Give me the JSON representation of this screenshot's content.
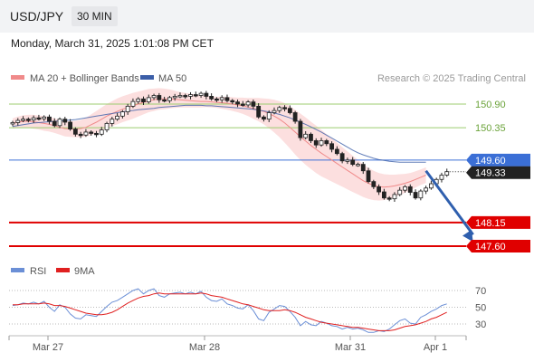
{
  "header": {
    "symbol": "USD/JPY",
    "timeframe": "30 MIN",
    "datetime": "Monday, March 31, 2025 1:01:08 PM CET"
  },
  "legend": {
    "bb_label": "MA 20 + Bollinger Bands",
    "ma50_label": "MA 50",
    "rsi_label": "RSI",
    "ma9_label": "9MA",
    "credit": "Research © 2025 Trading Central"
  },
  "colors": {
    "bb": "#f08a8a",
    "bb_fill": "#fbd9d9",
    "ma50": "#3b5ea8",
    "rsi": "#6b8fd6",
    "ma9": "#e02020",
    "resistance": "#9ccc6f",
    "resistance_text": "#6ba33a",
    "support": "#e00000",
    "pivot": "#3b6fd6",
    "up": "#ffffff",
    "down": "#222222"
  },
  "chart_data": [
    {
      "type": "candlestick",
      "x_ticks": [
        "Mar 27",
        "Mar 28",
        "Mar 31",
        "Apr 1"
      ],
      "ylim": [
        147.45,
        151.25
      ],
      "levels": [
        {
          "price": 150.9,
          "label": "150.90",
          "kind": "resistance"
        },
        {
          "price": 150.35,
          "label": "150.35",
          "kind": "resistance"
        },
        {
          "price": 149.6,
          "label": "149.60",
          "kind": "pivot"
        },
        {
          "price": 148.15,
          "label": "148.15",
          "kind": "support"
        },
        {
          "price": 147.6,
          "label": "147.60",
          "kind": "support"
        }
      ],
      "last_price": {
        "value": 149.33,
        "label": "149.33"
      },
      "forecast": [
        {
          "i": 79,
          "p": 149.35
        },
        {
          "i": 88,
          "p": 147.7
        }
      ],
      "ma20": [
        150.45,
        150.48,
        150.5,
        150.5,
        150.49,
        150.47,
        150.45,
        150.43,
        150.4,
        150.36,
        150.33,
        150.32,
        150.32,
        150.33,
        150.36,
        150.42,
        150.48,
        150.55,
        150.62,
        150.68,
        150.73,
        150.78,
        150.82,
        150.86,
        150.9,
        150.94,
        150.98,
        151.0,
        151.02,
        151.02,
        151.02,
        151.01,
        151.0,
        150.99,
        150.98,
        150.97,
        150.96,
        150.96,
        150.95,
        150.94,
        150.93,
        150.92,
        150.9,
        150.88,
        150.86,
        150.83,
        150.8,
        150.77,
        150.73,
        150.68,
        150.62,
        150.55,
        150.46,
        150.36,
        150.25,
        150.14,
        150.04,
        149.94,
        149.85,
        149.76,
        149.68,
        149.6,
        149.52,
        149.44,
        149.36,
        149.28,
        149.2,
        149.12,
        149.06,
        149.01,
        148.98,
        148.97,
        148.98,
        149.0,
        149.03,
        149.06,
        149.1,
        149.15,
        149.2,
        149.25
      ],
      "bb_width": [
        0.12,
        0.13,
        0.14,
        0.15,
        0.16,
        0.16,
        0.17,
        0.17,
        0.17,
        0.17,
        0.18,
        0.18,
        0.19,
        0.2,
        0.22,
        0.24,
        0.26,
        0.27,
        0.28,
        0.29,
        0.3,
        0.3,
        0.3,
        0.3,
        0.29,
        0.28,
        0.27,
        0.26,
        0.25,
        0.24,
        0.22,
        0.2,
        0.18,
        0.17,
        0.16,
        0.15,
        0.14,
        0.13,
        0.13,
        0.13,
        0.14,
        0.15,
        0.16,
        0.17,
        0.19,
        0.21,
        0.24,
        0.27,
        0.3,
        0.34,
        0.38,
        0.42,
        0.46,
        0.49,
        0.52,
        0.54,
        0.55,
        0.55,
        0.55,
        0.54,
        0.52,
        0.5,
        0.48,
        0.46,
        0.44,
        0.42,
        0.4,
        0.38,
        0.36,
        0.34,
        0.32,
        0.3,
        0.28,
        0.26,
        0.24,
        0.22,
        0.2,
        0.19,
        0.18,
        0.18
      ],
      "ma50": [
        150.38,
        150.4,
        150.42,
        150.44,
        150.46,
        150.47,
        150.48,
        150.49,
        150.5,
        150.51,
        150.52,
        150.53,
        150.54,
        150.56,
        150.58,
        150.6,
        150.62,
        150.64,
        150.66,
        150.68,
        150.7,
        150.72,
        150.74,
        150.75,
        150.77,
        150.78,
        150.79,
        150.8,
        150.82,
        150.83,
        150.84,
        150.85,
        150.86,
        150.87,
        150.87,
        150.87,
        150.87,
        150.86,
        150.86,
        150.85,
        150.84,
        150.83,
        150.82,
        150.81,
        150.8,
        150.79,
        150.78,
        150.76,
        150.74,
        150.72,
        150.69,
        150.66,
        150.62,
        150.58,
        150.53,
        150.48,
        150.43,
        150.37,
        150.31,
        150.25,
        150.18,
        150.11,
        150.04,
        149.97,
        149.9,
        149.83,
        149.77,
        149.72,
        149.68,
        149.64,
        149.61,
        149.59,
        149.57,
        149.56,
        149.55,
        149.55,
        149.55,
        149.55,
        149.55,
        149.55
      ],
      "close": [
        150.47,
        150.52,
        150.55,
        150.53,
        150.58,
        150.56,
        150.6,
        150.5,
        150.4,
        150.55,
        150.48,
        150.32,
        150.2,
        150.18,
        150.25,
        150.22,
        150.2,
        150.3,
        150.45,
        150.55,
        150.62,
        150.72,
        150.85,
        150.96,
        151.02,
        150.95,
        151.05,
        151.1,
        151.0,
        150.98,
        151.05,
        151.08,
        151.1,
        151.08,
        151.12,
        151.1,
        151.15,
        151.08,
        151.02,
        151.0,
        151.05,
        150.98,
        150.95,
        150.9,
        150.88,
        150.95,
        150.85,
        150.6,
        150.55,
        150.7,
        150.75,
        150.82,
        150.8,
        150.7,
        150.5,
        150.12,
        150.2,
        150.05,
        149.95,
        150.05,
        149.98,
        149.85,
        149.75,
        149.58,
        149.6,
        149.5,
        149.5,
        149.35,
        149.1,
        148.98,
        148.86,
        148.72,
        148.7,
        148.8,
        148.9,
        148.98,
        148.85,
        148.72,
        148.88,
        148.95,
        149.05,
        149.15,
        149.25,
        149.33
      ],
      "rsi": [
        52,
        53,
        55,
        54,
        56,
        54,
        57,
        50,
        45,
        53,
        50,
        42,
        37,
        36,
        41,
        40,
        39,
        45,
        51,
        56,
        58,
        62,
        66,
        70,
        72,
        66,
        70,
        72,
        64,
        62,
        66,
        67,
        68,
        66,
        68,
        66,
        69,
        62,
        58,
        57,
        60,
        54,
        52,
        49,
        48,
        53,
        46,
        36,
        34,
        44,
        48,
        52,
        51,
        45,
        38,
        28,
        33,
        29,
        28,
        33,
        31,
        28,
        27,
        24,
        26,
        24,
        25,
        23,
        20,
        20,
        22,
        21,
        24,
        29,
        34,
        36,
        31,
        30,
        38,
        41,
        45,
        48,
        52,
        54
      ],
      "ma9_rsi": [
        53,
        53,
        54,
        54,
        54,
        54,
        55,
        54,
        52,
        52,
        51,
        49,
        47,
        45,
        43,
        42,
        41,
        41,
        42,
        44,
        47,
        51,
        55,
        58,
        61,
        63,
        64,
        66,
        67,
        66,
        66,
        66,
        66,
        66,
        66,
        66,
        67,
        66,
        64,
        63,
        62,
        60,
        58,
        56,
        54,
        53,
        51,
        49,
        47,
        46,
        46,
        46,
        47,
        46,
        44,
        41,
        38,
        36,
        34,
        32,
        31,
        30,
        29,
        28,
        27,
        26,
        26,
        25,
        24,
        23,
        22,
        22,
        22,
        23,
        25,
        27,
        28,
        29,
        31,
        33,
        36,
        38,
        41,
        44
      ],
      "rsi_ticks": [
        70,
        50,
        30
      ]
    }
  ]
}
